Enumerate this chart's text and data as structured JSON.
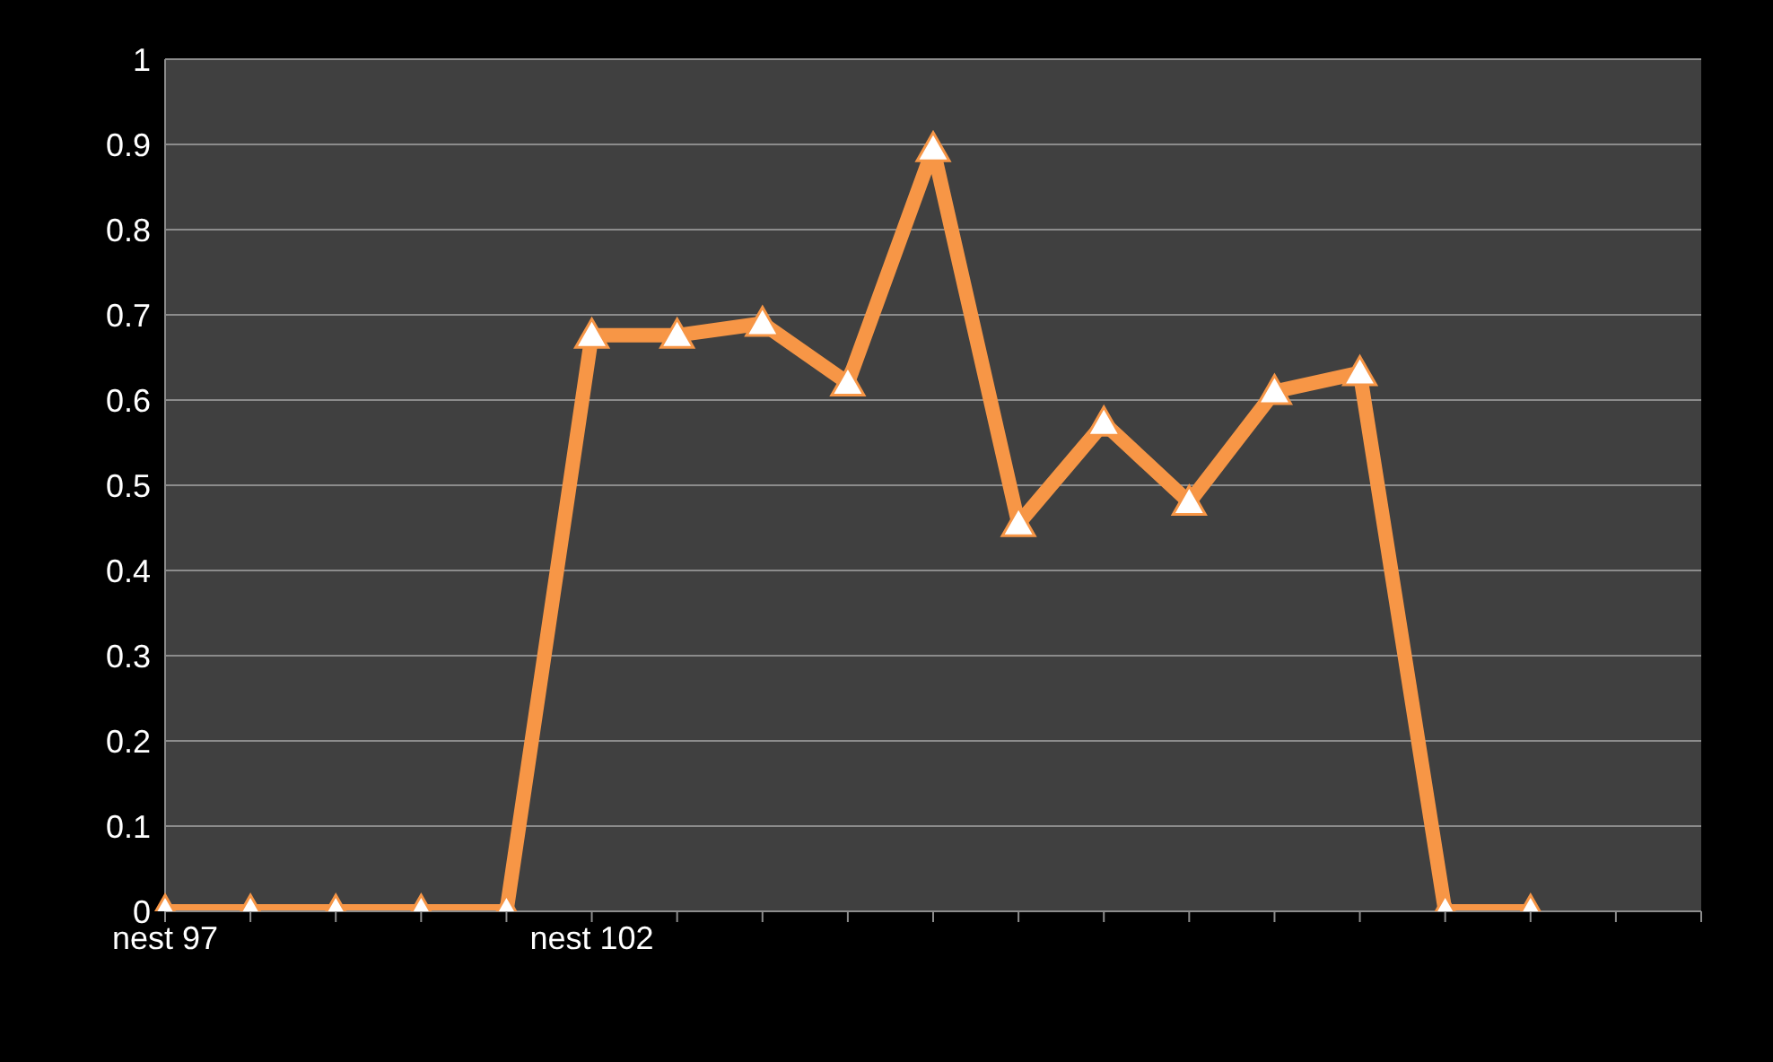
{
  "chart_data": {
    "type": "line",
    "categories": [
      "nest 97",
      null,
      null,
      null,
      null,
      "nest 102",
      null,
      null,
      null,
      null,
      null,
      null,
      null,
      null,
      null,
      null,
      null,
      null,
      null
    ],
    "series": [
      {
        "color": "#f79646",
        "values": [
          0,
          0,
          0,
          0,
          0,
          0.676,
          0.676,
          0.69,
          0.62,
          0.895,
          0.455,
          0.573,
          0.48,
          0.61,
          0.632,
          0,
          0,
          null,
          null
        ]
      }
    ],
    "ylim": [
      0,
      1
    ],
    "yticks": [
      0,
      0.1,
      0.2,
      0.3,
      0.4,
      0.5,
      0.6,
      0.7,
      0.8,
      0.9,
      1
    ],
    "grid": "y",
    "marker": "triangle",
    "line_style": "solid",
    "legend": false
  }
}
